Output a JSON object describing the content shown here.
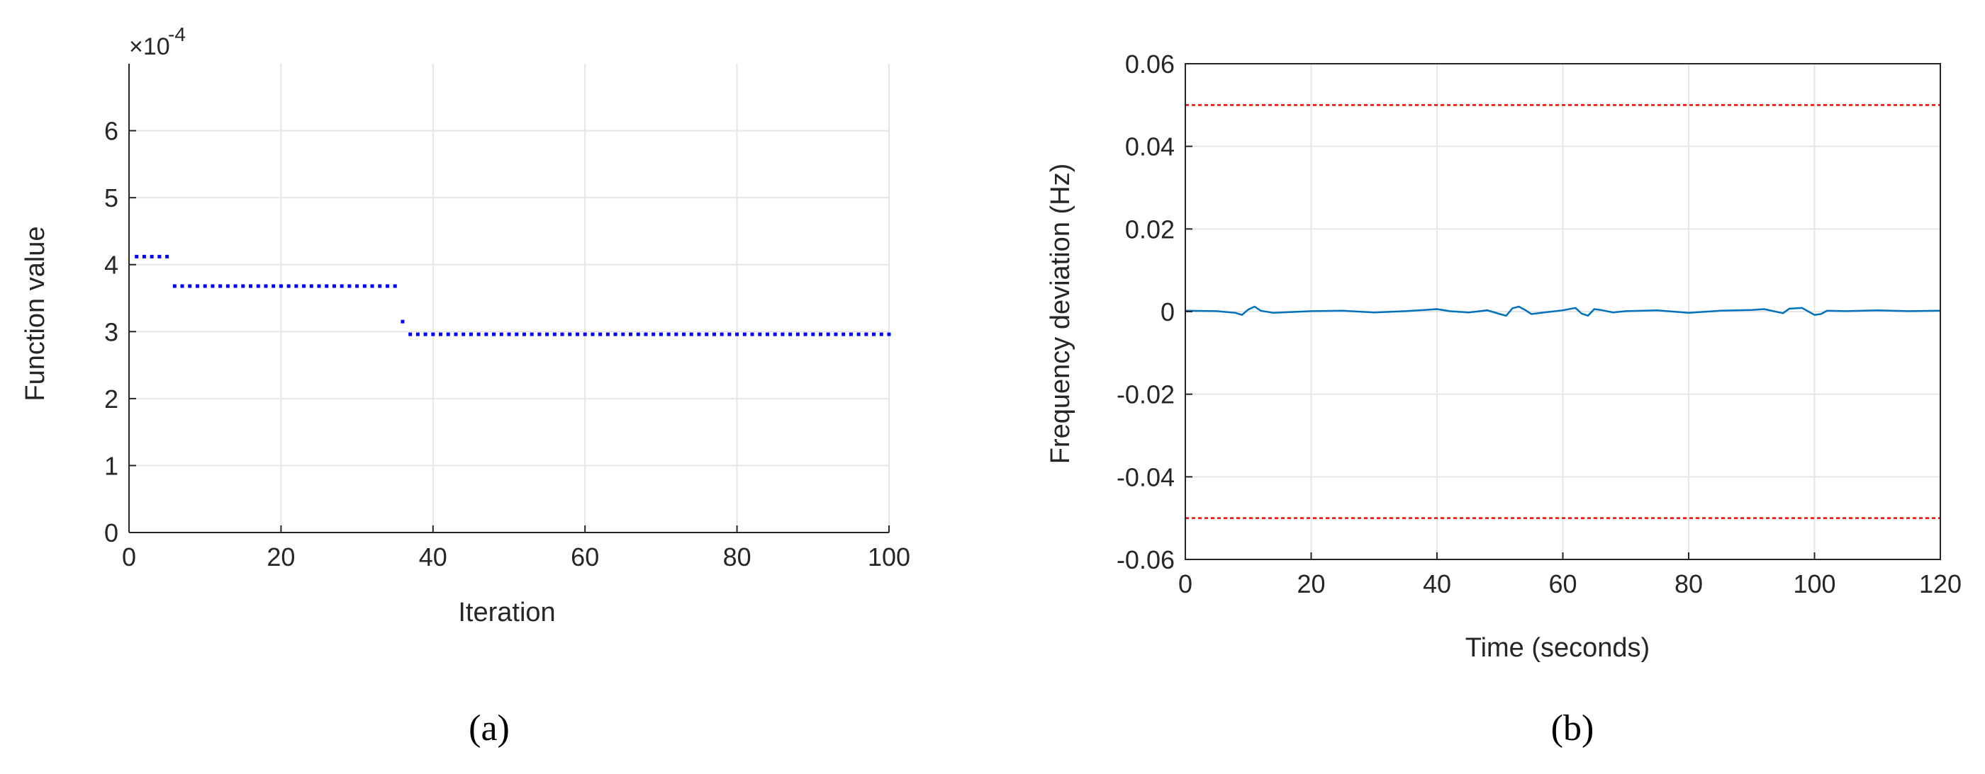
{
  "chart_data": [
    {
      "type": "scatter",
      "panel_label": "(a)",
      "xlabel": "Iteration",
      "ylabel": "Function value",
      "exponent_label": "×10",
      "exponent_power": "-4",
      "xlim": [
        0,
        100
      ],
      "ylim": [
        0,
        7
      ],
      "xticks": [
        "0",
        "20",
        "40",
        "60",
        "80",
        "100"
      ],
      "yticks": [
        "0",
        "1",
        "2",
        "3",
        "4",
        "5",
        "6"
      ],
      "xtick_values": [
        0,
        20,
        40,
        60,
        80,
        100
      ],
      "ytick_values": [
        0,
        1,
        2,
        3,
        4,
        5,
        6
      ],
      "grid": true,
      "marker_color": "#0000ff",
      "segments": [
        {
          "from": 1,
          "to": 5,
          "value": 4.12
        },
        {
          "from": 6,
          "to": 35,
          "value": 3.68
        },
        {
          "from": 36,
          "to": 36,
          "value": 3.15
        },
        {
          "from": 37,
          "to": 100,
          "value": 2.96
        }
      ]
    },
    {
      "type": "line",
      "panel_label": "(b)",
      "xlabel": "Time (seconds)",
      "ylabel": "Frequency deviation (Hz)",
      "xlim": [
        0,
        120
      ],
      "ylim": [
        -0.06,
        0.06
      ],
      "xticks": [
        "0",
        "20",
        "40",
        "60",
        "80",
        "100",
        "120"
      ],
      "yticks": [
        "0.06",
        "0.04",
        "0.02",
        "0",
        "-0.02",
        "-0.04",
        "-0.06"
      ],
      "xtick_values": [
        0,
        20,
        40,
        60,
        80,
        100,
        120
      ],
      "ytick_values": [
        0.06,
        0.04,
        0.02,
        0,
        -0.02,
        -0.04,
        -0.06
      ],
      "grid": true,
      "line_color": "#0072bd",
      "limit_color": "#ff0000",
      "limits": [
        0.05,
        -0.05
      ],
      "x": [
        0,
        5,
        8,
        9,
        10,
        11,
        12,
        14,
        20,
        25,
        30,
        35,
        38,
        40,
        42,
        45,
        48,
        50,
        51,
        52,
        53,
        54,
        55,
        57,
        60,
        62,
        63,
        64,
        65,
        66,
        68,
        70,
        75,
        80,
        85,
        90,
        92,
        95,
        96,
        98,
        100,
        101,
        102,
        105,
        110,
        115,
        120
      ],
      "y": [
        0.0002,
        0.0001,
        -0.0003,
        -0.0008,
        0.0005,
        0.0012,
        0.0002,
        -0.0003,
        0.0001,
        0.0002,
        -0.0002,
        0.0001,
        0.0004,
        0.0006,
        0.0001,
        -0.0002,
        0.0003,
        -0.0006,
        -0.001,
        0.0008,
        0.0012,
        0.0004,
        -0.0006,
        -0.0002,
        0.0003,
        0.0009,
        -0.0005,
        -0.001,
        0.0006,
        0.0004,
        -0.0002,
        0.0001,
        0.0003,
        -0.0003,
        0.0002,
        0.0004,
        0.0006,
        -0.0004,
        0.0007,
        0.0009,
        -0.0008,
        -0.0006,
        0.0002,
        0.0001,
        0.0003,
        0.0001,
        0.0002
      ]
    }
  ]
}
